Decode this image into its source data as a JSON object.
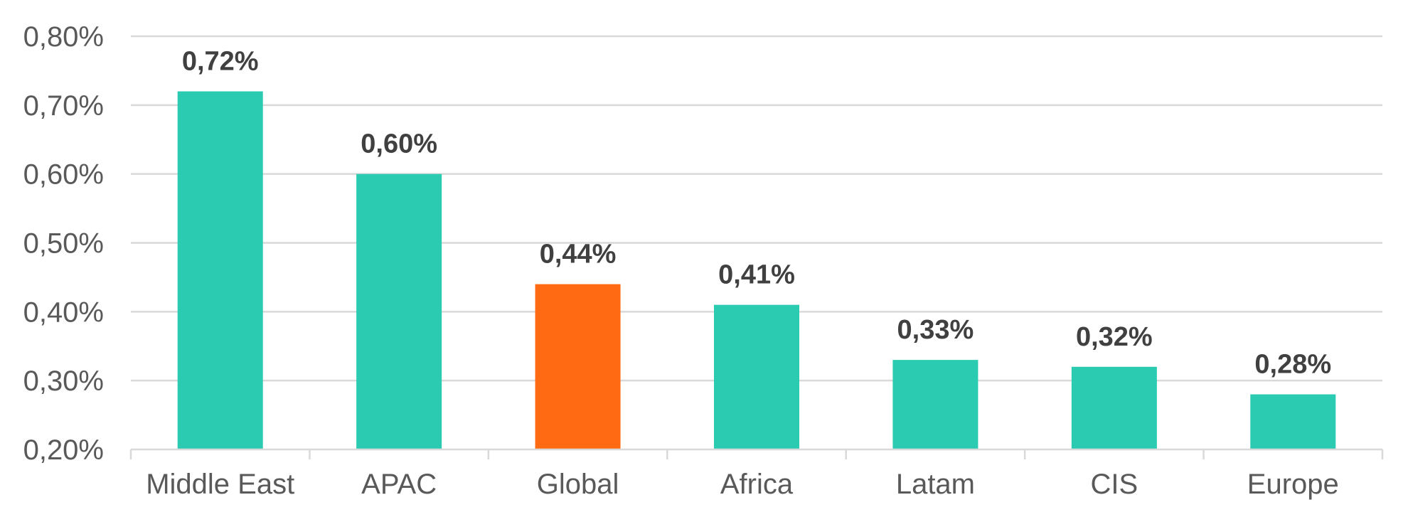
{
  "chart_data": {
    "type": "bar",
    "title": "",
    "xlabel": "",
    "ylabel": "",
    "categories": [
      "Middle East",
      "APAC",
      "Global",
      "Africa",
      "Latam",
      "CIS",
      "Europe"
    ],
    "values": [
      0.72,
      0.6,
      0.44,
      0.41,
      0.33,
      0.32,
      0.28
    ],
    "data_labels": [
      "0,72%",
      "0,60%",
      "0,44%",
      "0,41%",
      "0,33%",
      "0,32%",
      "0,28%"
    ],
    "bar_colors": [
      "#2bcbb2",
      "#2bcbb2",
      "#ff6a13",
      "#2bcbb2",
      "#2bcbb2",
      "#2bcbb2",
      "#2bcbb2"
    ],
    "ylim": [
      0.2,
      0.8
    ],
    "yticks": [
      0.2,
      0.3,
      0.4,
      0.5,
      0.6,
      0.7,
      0.8
    ],
    "ytick_labels": [
      "0,20%",
      "0,30%",
      "0,40%",
      "0,50%",
      "0,60%",
      "0,70%",
      "0,80%"
    ],
    "grid": true,
    "legend": "none"
  }
}
